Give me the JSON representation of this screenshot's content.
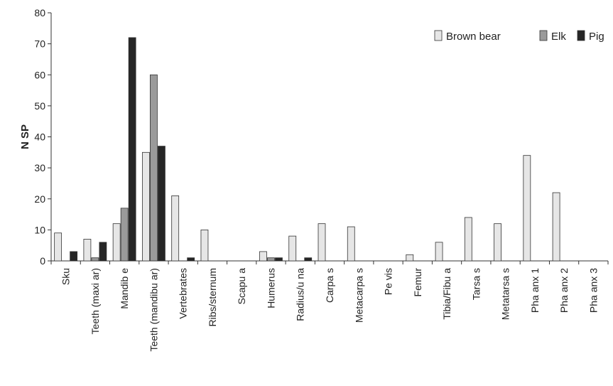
{
  "chart_data": {
    "type": "bar",
    "title": "",
    "xlabel": "",
    "ylabel": "N SP",
    "ylim": [
      0,
      80
    ],
    "yticks": [
      0,
      10,
      20,
      30,
      40,
      50,
      60,
      70,
      80
    ],
    "grid": false,
    "legend_position": "top-right",
    "categories": [
      "Sku",
      "Teeth (maxi ar)",
      "Mandib e",
      "Teeth (mandibu ar)",
      "Vertebrates",
      "Ribs/sternum",
      "Scapu a",
      "Humerus",
      "Radius/u na",
      "Carpa s",
      "Metacarpa s",
      "Pe vis",
      "Femur",
      "Tibia/Fibu a",
      "Tarsa s",
      "Metatarsa s",
      "Pha anx 1",
      "Pha anx 2",
      "Pha anx 3"
    ],
    "series": [
      {
        "name": "Brown bear",
        "color": "#e6e6e6",
        "values": [
          9,
          7,
          12,
          35,
          21,
          10,
          0,
          3,
          8,
          12,
          11,
          0,
          2,
          6,
          14,
          12,
          34,
          22,
          0
        ]
      },
      {
        "name": "Elk",
        "color": "#9a9a9a",
        "values": [
          0,
          1,
          17,
          60,
          0,
          0,
          0,
          1,
          0,
          0,
          0,
          0,
          0,
          0,
          0,
          0,
          0,
          0,
          0
        ]
      },
      {
        "name": "Pig",
        "color": "#262626",
        "values": [
          3,
          6,
          72,
          37,
          1,
          0,
          0,
          1,
          1,
          0,
          0,
          0,
          0,
          0,
          0,
          0,
          0,
          0,
          0
        ]
      }
    ]
  }
}
